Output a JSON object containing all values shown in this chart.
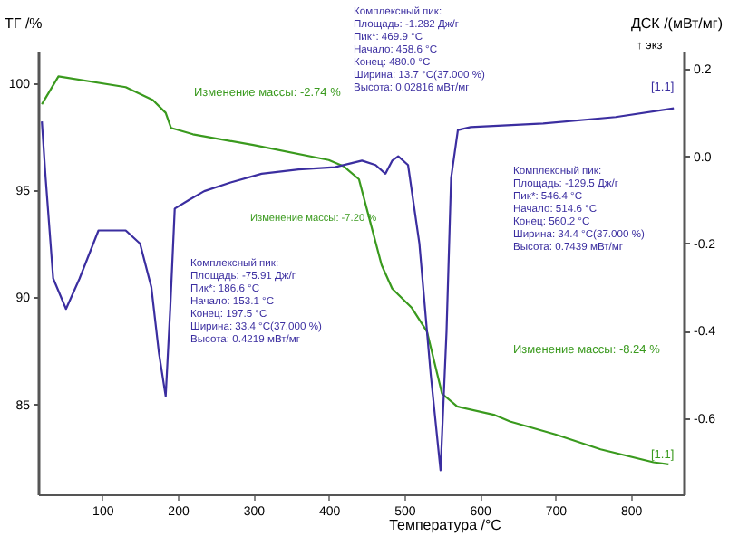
{
  "chart_data": {
    "type": "line",
    "xlabel": "Температура /°C",
    "ylabel": "ТГ /%",
    "y2label": "ДСК /(мВт/мг)",
    "xlim": [
      15,
      870
    ],
    "xticks": [
      100,
      200,
      300,
      400,
      500,
      600,
      700,
      800
    ],
    "ylim": [
      80.8,
      101.5
    ],
    "yticks": [
      85,
      90,
      95,
      100
    ],
    "y2lim": [
      -0.775,
      0.242
    ],
    "y2ticks": [
      -0.6,
      -0.4,
      -0.2,
      {
        "value": 0,
        "label": "0.0"
      },
      0.2
    ],
    "grid": false,
    "marker": "none",
    "line_style": "solid",
    "series": [
      {
        "color": "#3a9a1e",
        "axis": "y",
        "x": [
          20,
          42,
          131,
          167,
          184,
          191,
          220,
          300,
          400,
          420,
          440,
          455,
          470,
          484,
          510,
          530,
          550,
          570,
          620,
          640,
          700,
          760,
          830,
          850
        ],
        "values": [
          99.0,
          100.3,
          99.8,
          99.2,
          98.6,
          97.9,
          97.6,
          97.1,
          96.4,
          96.1,
          95.5,
          93.5,
          91.5,
          90.4,
          89.5,
          88.4,
          85.5,
          84.9,
          84.5,
          84.2,
          83.6,
          82.9,
          82.3,
          82.2
        ]
      },
      {
        "color": "#3b2ea0",
        "axis": "y2",
        "x": [
          20,
          25,
          35,
          52,
          70,
          95,
          131,
          150,
          165,
          175,
          184,
          190,
          196,
          215,
          235,
          270,
          311,
          360,
          408,
          444,
          462,
          475,
          484,
          492,
          505,
          520,
          535,
          548,
          556,
          562,
          571,
          588,
          684,
          780,
          857
        ],
        "values": [
          0.08,
          -0.05,
          -0.28,
          -0.35,
          -0.28,
          -0.17,
          -0.17,
          -0.2,
          -0.3,
          -0.45,
          -0.55,
          -0.35,
          -0.12,
          -0.1,
          -0.08,
          -0.06,
          -0.04,
          -0.03,
          -0.025,
          -0.01,
          -0.02,
          -0.04,
          -0.01,
          0.0,
          -0.02,
          -0.2,
          -0.5,
          -0.72,
          -0.4,
          -0.05,
          0.06,
          0.067,
          0.075,
          0.09,
          0.11
        ]
      }
    ],
    "annotations": [
      "Изменение массы: -2.74 %",
      "Изменение массы: -7.20 %",
      "Изменение массы: -8.24 %",
      "Комплексный пик:\nПлощадь: -1.282 Дж/г\nПик*: 469.9 °C\nНачало: 458.6 °C\nКонец: 480.0 °C\nШирина: 13.7 °C(37.000 %)\nВысота: 0.02816 мВт/мг",
      "Комплексный пик:\nПлощадь: -129.5 Дж/г\nПик*: 546.4 °C\nНачало: 514.6 °C\nКонец: 560.2 °C\nШирина: 34.4 °C(37.000 %)\nВысота: 0.7439 мВт/мг",
      "Комплексный пик:\nПлощадь: -75.91 Дж/г\nПик*: 186.6 °C\nНачало: 153.1 °C\nКонец: 197.5 °C\nШирина: 33.4 °C(37.000 %)\nВысота: 0.4219 мВт/мг",
      "↑ экз",
      "[1.1]",
      "[1.1]"
    ]
  }
}
